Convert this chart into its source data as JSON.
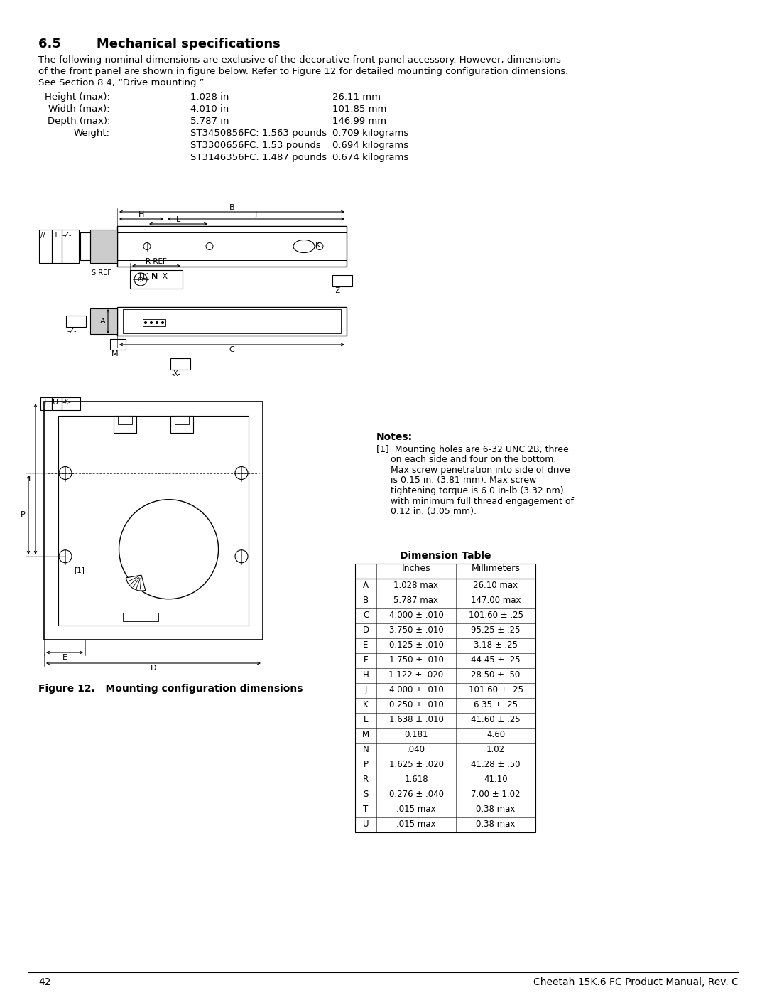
{
  "title": "6.5        Mechanical specifications",
  "intro": "The following nominal dimensions are exclusive of the decorative front panel accessory. However, dimensions\nof the front panel are shown in figure below. Refer to Figure 12 for detailed mounting configuration dimensions.\nSee Section 8.4, “Drive mounting.”",
  "spec_rows": [
    {
      "label": "Height (max):",
      "val1": "1.028 in",
      "val2": "26.11 mm"
    },
    {
      "label": "Width (max):",
      "val1": "4.010 in",
      "val2": "101.85 mm"
    },
    {
      "label": "Depth (max):",
      "val1": "5.787 in",
      "val2": "146.99 mm"
    },
    {
      "label": "Weight:",
      "val1": "ST3450856FC: 1.563 pounds",
      "val2": "0.709 kilograms"
    },
    {
      "label": "",
      "val1": "ST3300656FC: 1.53 pounds",
      "val2": "0.694 kilograms"
    },
    {
      "label": "",
      "val1": "ST3146356FC: 1.487 pounds",
      "val2": "0.674 kilograms"
    }
  ],
  "notes_title": "Notes:",
  "notes_body": "[1]  Mounting holes are 6-32 UNC 2B, three\n     on each side and four on the bottom.\n     Max screw penetration into side of drive\n     is 0.15 in. (3.81 mm). Max screw\n     tightening torque is 6.0 in-lb (3.32 nm)\n     with minimum full thread engagement of\n     0.12 in. (3.05 mm).",
  "dim_title": "Dimension Table",
  "dim_headers": [
    "",
    "Inches",
    "Millimeters"
  ],
  "dim_rows": [
    [
      "A",
      "1.028 max",
      "26.10 max"
    ],
    [
      "B",
      "5.787 max",
      "147.00 max"
    ],
    [
      "C",
      "4.000 ± .010",
      "101.60 ± .25"
    ],
    [
      "D",
      "3.750 ± .010",
      "95.25 ± .25"
    ],
    [
      "E",
      "0.125 ± .010",
      "3.18 ± .25"
    ],
    [
      "F",
      "1.750 ± .010",
      "44.45 ± .25"
    ],
    [
      "H",
      "1.122 ± .020",
      "28.50 ± .50"
    ],
    [
      "J",
      "4.000 ± .010",
      "101.60 ± .25"
    ],
    [
      "K",
      "0.250 ± .010",
      "6.35 ± .25"
    ],
    [
      "L",
      "1.638 ± .010",
      "41.60 ± .25"
    ],
    [
      "M",
      "0.181",
      "4.60"
    ],
    [
      "N",
      ".040",
      "1.02"
    ],
    [
      "P",
      "1.625 ± .020",
      "41.28 ± .50"
    ],
    [
      "R",
      "1.618",
      "41.10"
    ],
    [
      "S",
      "0.276 ± .040",
      "7.00 ± 1.02"
    ],
    [
      "T",
      ".015 max",
      "0.38 max"
    ],
    [
      "U",
      ".015 max",
      "0.38 max"
    ]
  ],
  "figure_caption": "Figure 12.   Mounting configuration dimensions",
  "page_num": "42",
  "page_title": "Cheetah 15K.6 FC Product Manual, Rev. C"
}
